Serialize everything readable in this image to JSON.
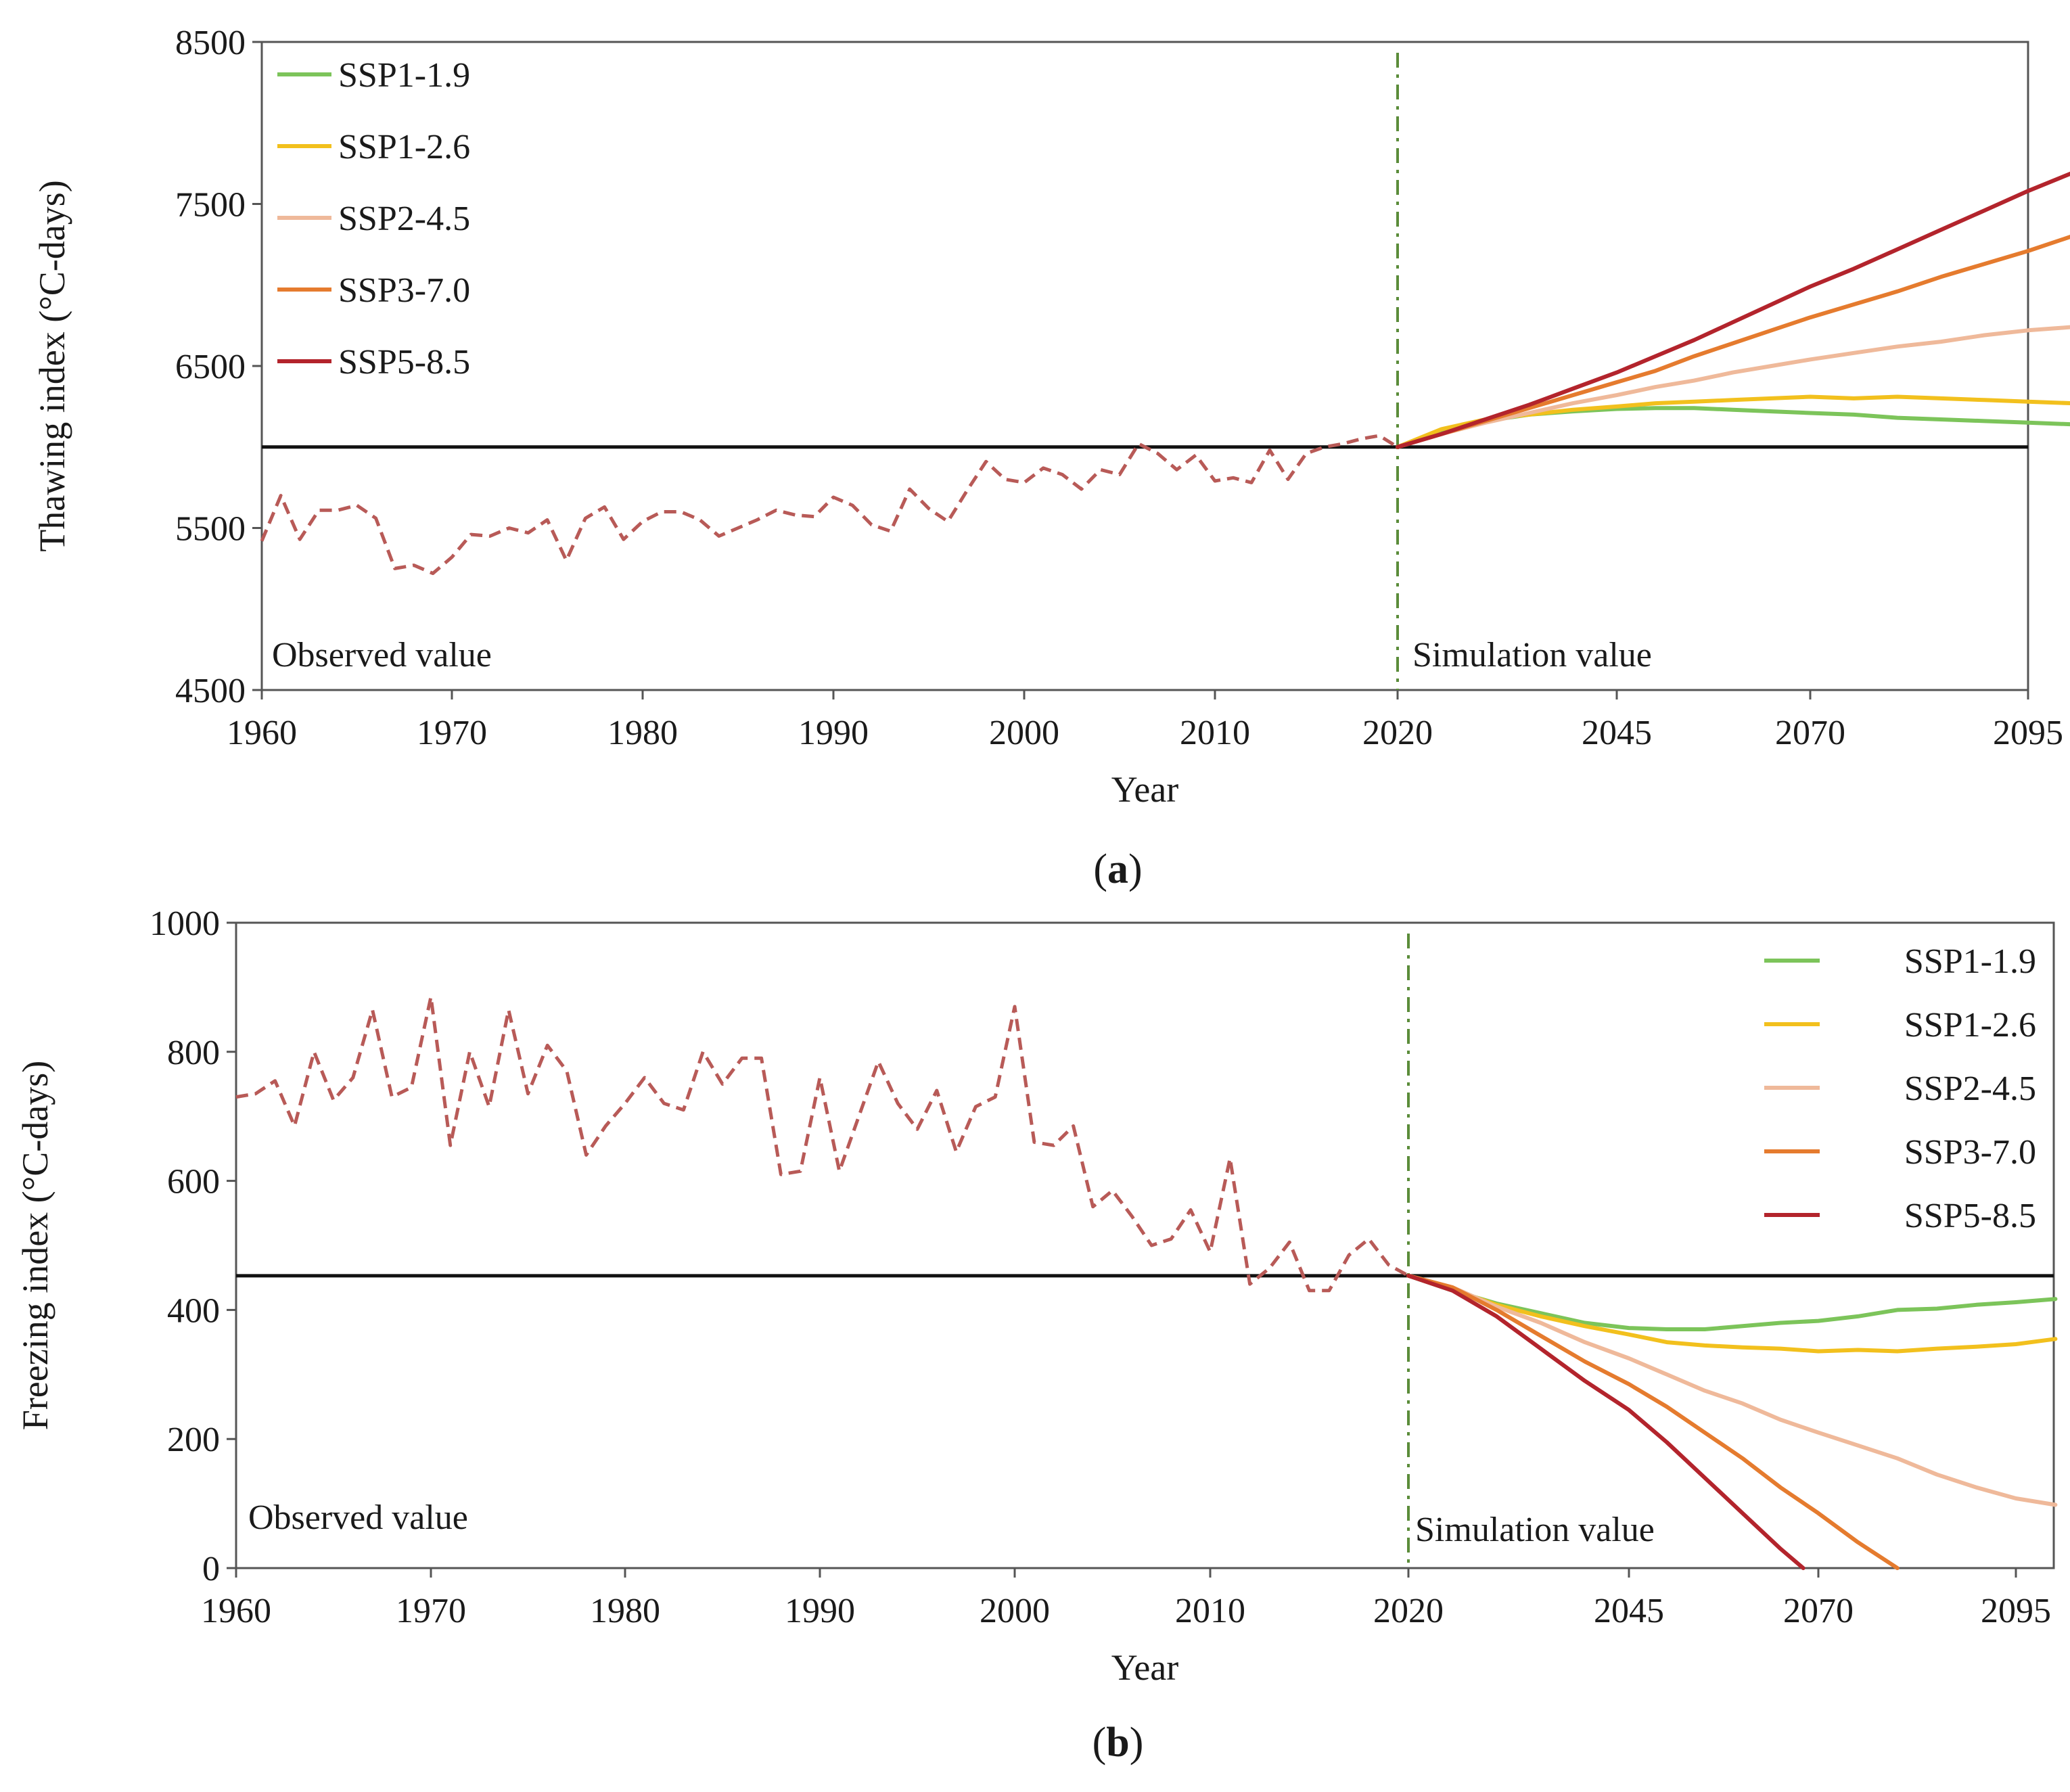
{
  "colors": {
    "observed": "#b85a57",
    "baseline": "#111111",
    "divider": "#5b8c3a",
    "SSP1-1.9": "#7cc45a",
    "SSP1-2.6": "#f2c01d",
    "SSP2-4.5": "#efb99a",
    "SSP3-7.0": "#e57b2e",
    "SSP5-8.5": "#b3242c"
  },
  "chart_data": [
    {
      "type": "line",
      "panel_label": "a",
      "xlabel": "Year",
      "ylabel": "Thawing index (°C-days)",
      "ylim": [
        4500,
        8500
      ],
      "yticks": [
        "4500",
        "5500",
        "6500",
        "7500",
        "8500"
      ],
      "xticks": [
        "1960",
        "1970",
        "1980",
        "1990",
        "2000",
        "2010",
        "2020",
        "2045",
        "2070",
        "2095"
      ],
      "baseline": 6000,
      "divider_year": 2020,
      "annotations": {
        "observed": "Observed value",
        "simulation": "Simulation value"
      },
      "legend_position": "top-left",
      "observed": {
        "name": "Observed",
        "x": [
          1960,
          1961,
          1962,
          1963,
          1964,
          1965,
          1966,
          1967,
          1968,
          1969,
          1970,
          1971,
          1972,
          1973,
          1974,
          1975,
          1976,
          1977,
          1978,
          1979,
          1980,
          1981,
          1982,
          1983,
          1984,
          1985,
          1986,
          1987,
          1988,
          1989,
          1990,
          1991,
          1992,
          1993,
          1994,
          1995,
          1996,
          1997,
          1998,
          1999,
          2000,
          2001,
          2002,
          2003,
          2004,
          2005,
          2006,
          2007,
          2008,
          2009,
          2010,
          2011,
          2012,
          2013,
          2014,
          2015,
          2016,
          2017,
          2018,
          2019,
          2020
        ],
        "y": [
          5420,
          5700,
          5430,
          5610,
          5610,
          5640,
          5560,
          5250,
          5270,
          5220,
          5320,
          5460,
          5450,
          5500,
          5470,
          5550,
          5300,
          5560,
          5630,
          5430,
          5540,
          5600,
          5600,
          5550,
          5450,
          5500,
          5550,
          5610,
          5580,
          5570,
          5690,
          5640,
          5520,
          5480,
          5740,
          5620,
          5540,
          5730,
          5910,
          5800,
          5780,
          5870,
          5830,
          5740,
          5860,
          5830,
          6020,
          5960,
          5860,
          5950,
          5790,
          5810,
          5780,
          5980,
          5800,
          5960,
          6000,
          6020,
          6050,
          6070,
          6000
        ]
      },
      "series": [
        {
          "name": "SSP1-1.9",
          "x": [
            2020,
            2025,
            2030,
            2035,
            2040,
            2045,
            2050,
            2055,
            2060,
            2065,
            2070,
            2075,
            2080,
            2085,
            2090,
            2095,
            2100
          ],
          "values": [
            6000,
            6100,
            6160,
            6200,
            6220,
            6235,
            6240,
            6240,
            6230,
            6220,
            6210,
            6200,
            6180,
            6170,
            6160,
            6150,
            6140
          ]
        },
        {
          "name": "SSP1-2.6",
          "x": [
            2020,
            2025,
            2030,
            2035,
            2040,
            2045,
            2050,
            2055,
            2060,
            2065,
            2070,
            2075,
            2080,
            2085,
            2090,
            2095,
            2100
          ],
          "values": [
            6000,
            6110,
            6170,
            6200,
            6230,
            6250,
            6270,
            6280,
            6290,
            6300,
            6310,
            6300,
            6310,
            6300,
            6290,
            6280,
            6270
          ]
        },
        {
          "name": "SSP2-4.5",
          "x": [
            2020,
            2025,
            2030,
            2035,
            2040,
            2045,
            2050,
            2055,
            2060,
            2065,
            2070,
            2075,
            2080,
            2085,
            2090,
            2095,
            2100
          ],
          "values": [
            6000,
            6080,
            6150,
            6210,
            6270,
            6320,
            6370,
            6410,
            6460,
            6500,
            6540,
            6580,
            6620,
            6650,
            6690,
            6720,
            6740
          ]
        },
        {
          "name": "SSP3-7.0",
          "x": [
            2020,
            2025,
            2030,
            2035,
            2040,
            2045,
            2050,
            2055,
            2060,
            2065,
            2070,
            2075,
            2080,
            2085,
            2090,
            2095,
            2100
          ],
          "values": [
            6000,
            6080,
            6160,
            6240,
            6320,
            6400,
            6470,
            6560,
            6640,
            6720,
            6800,
            6880,
            6960,
            7050,
            7130,
            7210,
            7300
          ]
        },
        {
          "name": "SSP5-8.5",
          "x": [
            2020,
            2025,
            2030,
            2035,
            2040,
            2045,
            2050,
            2055,
            2060,
            2065,
            2070,
            2075,
            2080,
            2085,
            2090,
            2095,
            2100
          ],
          "values": [
            6000,
            6080,
            6170,
            6260,
            6360,
            6460,
            6560,
            6660,
            6770,
            6880,
            6990,
            7100,
            7220,
            7340,
            7460,
            7580,
            7690
          ]
        }
      ]
    },
    {
      "type": "line",
      "panel_label": "b",
      "xlabel": "Year",
      "ylabel": "Freezing index (°C-days)",
      "ylim": [
        0,
        1000
      ],
      "yticks": [
        "0",
        "200",
        "400",
        "600",
        "800",
        "1000"
      ],
      "xticks": [
        "1960",
        "1970",
        "1980",
        "1990",
        "2000",
        "2010",
        "2020",
        "2045",
        "2070",
        "2095"
      ],
      "baseline": 453,
      "divider_year": 2020,
      "annotations": {
        "observed": "Observed value",
        "simulation": "Simulation value"
      },
      "legend_position": "top-right",
      "observed": {
        "name": "Observed",
        "x": [
          1960,
          1961,
          1962,
          1963,
          1964,
          1965,
          1966,
          1967,
          1968,
          1969,
          1970,
          1971,
          1972,
          1973,
          1974,
          1975,
          1976,
          1977,
          1978,
          1979,
          1980,
          1981,
          1982,
          1983,
          1984,
          1985,
          1986,
          1987,
          1988,
          1989,
          1990,
          1991,
          1992,
          1993,
          1994,
          1995,
          1996,
          1997,
          1998,
          1999,
          2000,
          2001,
          2002,
          2003,
          2004,
          2005,
          2006,
          2007,
          2008,
          2009,
          2010,
          2011,
          2012,
          2013,
          2014,
          2015,
          2016,
          2017,
          2018,
          2019,
          2020
        ],
        "y": [
          730,
          735,
          755,
          685,
          800,
          725,
          760,
          865,
          730,
          745,
          885,
          655,
          800,
          715,
          865,
          735,
          810,
          770,
          640,
          685,
          720,
          760,
          720,
          710,
          800,
          750,
          790,
          790,
          610,
          615,
          760,
          615,
          700,
          785,
          720,
          680,
          740,
          645,
          715,
          730,
          870,
          660,
          655,
          685,
          560,
          585,
          545,
          500,
          510,
          555,
          490,
          635,
          440,
          465,
          505,
          430,
          430,
          485,
          510,
          470,
          453
        ]
      },
      "series": [
        {
          "name": "SSP1-1.9",
          "x": [
            2020,
            2025,
            2030,
            2035,
            2040,
            2045,
            2050,
            2055,
            2060,
            2065,
            2070,
            2075,
            2080,
            2085,
            2090,
            2095,
            2100
          ],
          "values": [
            453,
            430,
            410,
            395,
            380,
            372,
            370,
            370,
            375,
            380,
            383,
            390,
            400,
            402,
            408,
            412,
            417
          ]
        },
        {
          "name": "SSP1-2.6",
          "x": [
            2020,
            2025,
            2030,
            2035,
            2040,
            2045,
            2050,
            2055,
            2060,
            2065,
            2070,
            2075,
            2080,
            2085,
            2090,
            2095,
            2100
          ],
          "values": [
            453,
            432,
            408,
            390,
            375,
            362,
            350,
            345,
            342,
            340,
            336,
            338,
            336,
            340,
            343,
            347,
            355
          ]
        },
        {
          "name": "SSP2-4.5",
          "x": [
            2020,
            2025,
            2030,
            2035,
            2040,
            2045,
            2050,
            2055,
            2060,
            2065,
            2070,
            2075,
            2080,
            2085,
            2090,
            2095,
            2100
          ],
          "values": [
            453,
            435,
            405,
            380,
            350,
            325,
            300,
            275,
            255,
            230,
            210,
            190,
            170,
            145,
            125,
            108,
            98
          ]
        },
        {
          "name": "SSP3-7.0",
          "x": [
            2020,
            2025,
            2030,
            2035,
            2040,
            2045,
            2050,
            2055,
            2060,
            2065,
            2070,
            2075,
            2080
          ],
          "values": [
            453,
            435,
            400,
            360,
            320,
            285,
            250,
            210,
            170,
            125,
            85,
            40,
            0
          ]
        },
        {
          "name": "SSP5-8.5",
          "x": [
            2020,
            2025,
            2030,
            2035,
            2040,
            2045,
            2050,
            2055,
            2060,
            2065,
            2068
          ],
          "values": [
            453,
            430,
            390,
            340,
            290,
            245,
            195,
            140,
            85,
            30,
            0
          ]
        }
      ]
    }
  ]
}
